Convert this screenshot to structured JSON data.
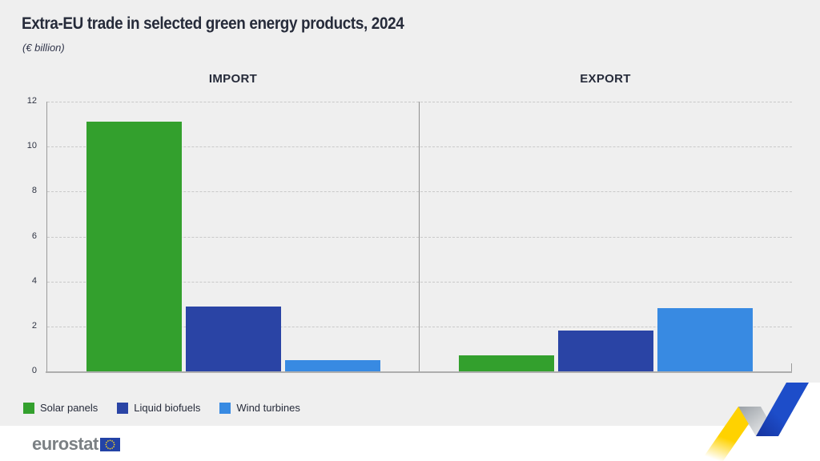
{
  "title": "Extra-EU trade in selected green energy products, 2024",
  "subtitle": "(€ billion)",
  "chart_data": {
    "type": "bar",
    "title": "Extra-EU trade in selected green energy products, 2024",
    "unit": "€ billion",
    "groups": [
      "IMPORT",
      "EXPORT"
    ],
    "categories": [
      "Solar panels",
      "Liquid biofuels",
      "Wind turbines"
    ],
    "series": [
      {
        "name": "Solar panels",
        "color": "#33a02d",
        "values": [
          11.1,
          0.7
        ]
      },
      {
        "name": "Liquid biofuels",
        "color": "#2a44a5",
        "values": [
          2.9,
          1.8
        ]
      },
      {
        "name": "Wind turbines",
        "color": "#388ae2",
        "values": [
          0.5,
          2.8
        ]
      }
    ],
    "y_ticks": [
      0,
      2,
      4,
      6,
      8,
      10,
      12
    ],
    "ylim": [
      0,
      12
    ],
    "grid": "horizontal dashed, panels separated by vertical divider",
    "legend_position": "bottom-left"
  },
  "footer": {
    "logo_text": "eurostat"
  },
  "brand_colors": {
    "ribbon_yellow": "#ffd200",
    "ribbon_blue": "#1d4dc9",
    "flag_blue": "#2343a6",
    "flag_stars": "#ffd617",
    "logo_gray": "#7b8084",
    "text_navy": "#262b3a"
  }
}
